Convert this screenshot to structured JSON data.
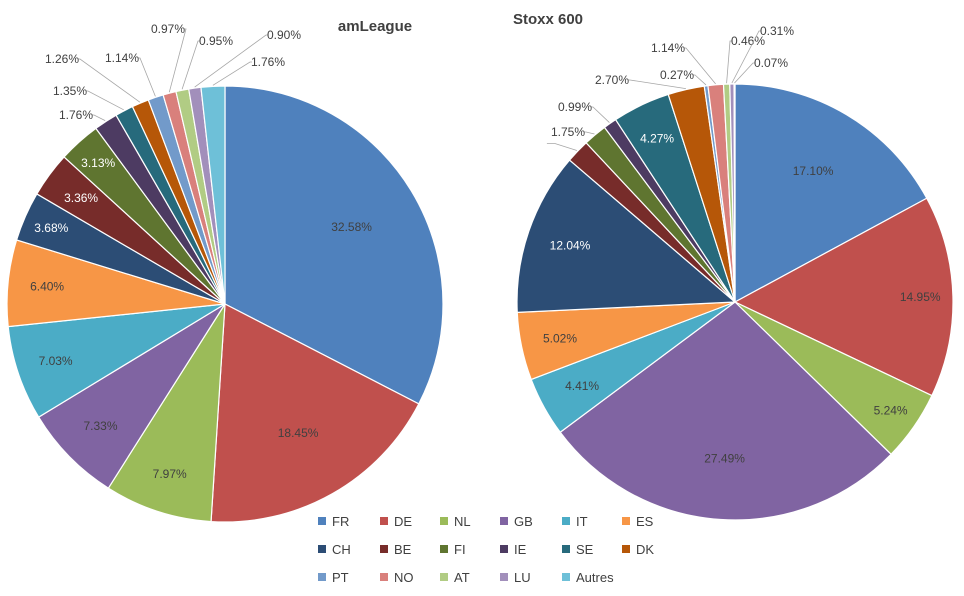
{
  "chart_data": [
    {
      "type": "pie",
      "title": "amLeague",
      "labels": [
        "FR",
        "DE",
        "NL",
        "GB",
        "IT",
        "ES",
        "CH",
        "BE",
        "FI",
        "IE",
        "SE",
        "DK",
        "PT",
        "NO",
        "AT",
        "LU",
        "Autres"
      ],
      "values": [
        32.58,
        18.45,
        7.97,
        7.33,
        7.03,
        6.4,
        3.68,
        3.36,
        3.13,
        1.76,
        1.35,
        1.26,
        1.14,
        0.97,
        0.95,
        0.9,
        1.76
      ],
      "value_labels": [
        "32.58%",
        "18.45%",
        "7.97%",
        "7.33%",
        "7.03%",
        "6.40%",
        "3.68%",
        "3.36%",
        "3.13%",
        "1.76%",
        "1.35%",
        "1.26%",
        "1.14%",
        "0.97%",
        "0.95%",
        "0.90%",
        "1.76%"
      ],
      "legend": "bottom"
    },
    {
      "type": "pie",
      "title": "Stoxx 600",
      "labels": [
        "FR",
        "DE",
        "NL",
        "GB",
        "IT",
        "ES",
        "CH",
        "BE",
        "FI",
        "IE",
        "SE",
        "DK",
        "PT",
        "NO",
        "AT",
        "LU",
        "Autres"
      ],
      "values": [
        17.1,
        14.95,
        5.24,
        27.49,
        4.41,
        5.02,
        12.04,
        1.75,
        1.75,
        0.99,
        4.27,
        2.7,
        0.27,
        1.14,
        0.46,
        0.31,
        0.07
      ],
      "value_labels": [
        "17.10%",
        "14.95%",
        "5.24%",
        "27.49%",
        "4.41%",
        "5.02%",
        "12.04%",
        "",
        "1.75%",
        "0.99%",
        "4.27%",
        "2.70%",
        "0.27%",
        "1.14%",
        "0.46%",
        "0.31%",
        "0.07%"
      ],
      "legend": "bottom"
    }
  ],
  "legend": {
    "entries": [
      "FR",
      "DE",
      "NL",
      "GB",
      "IT",
      "ES",
      "CH",
      "BE",
      "FI",
      "IE",
      "SE",
      "DK",
      "PT",
      "NO",
      "AT",
      "LU",
      "Autres"
    ]
  },
  "colors": [
    "#4f81bd",
    "#c0504d",
    "#9bbb59",
    "#8064a2",
    "#4bacc6",
    "#f79646",
    "#2c4d75",
    "#772c2a",
    "#5f7530",
    "#4d3b62",
    "#276a7c",
    "#b65708",
    "#729aca",
    "#d9807c",
    "#b1cc84",
    "#a28fbb",
    "#6ec0d8"
  ]
}
